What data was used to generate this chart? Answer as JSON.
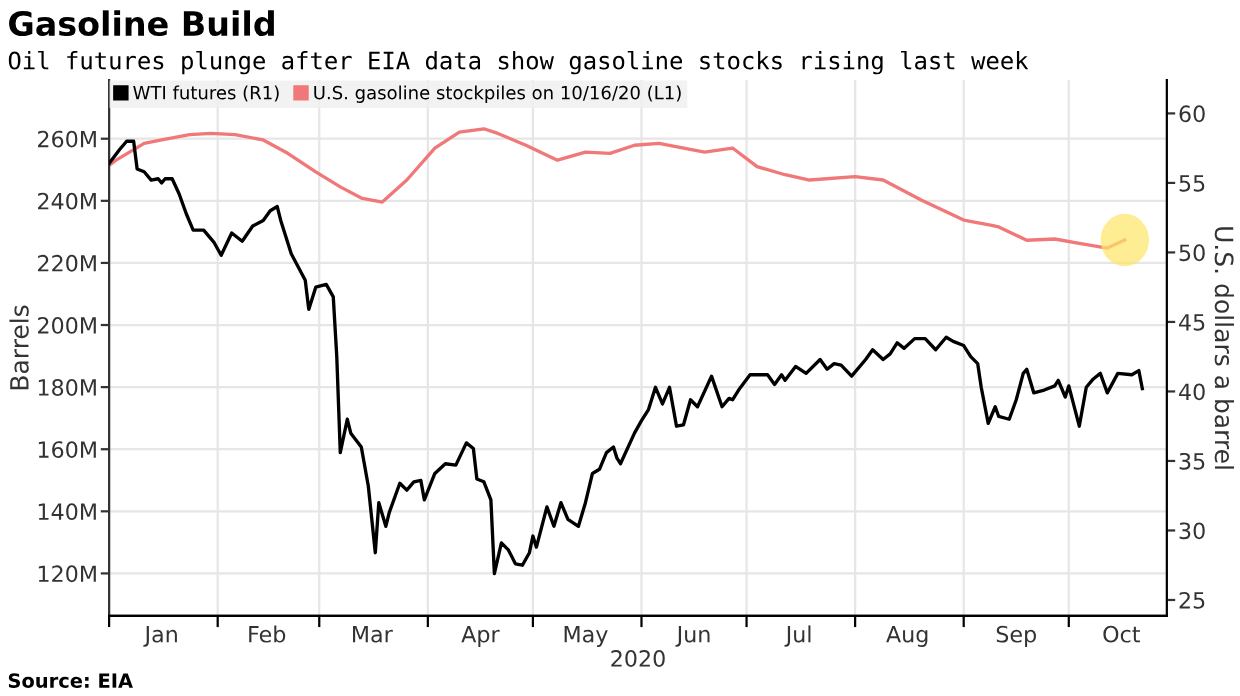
{
  "chart_data": {
    "type": "line",
    "title": "Gasoline Build",
    "subtitle": "Oil futures plunge after EIA data show gasoline stocks rising last week",
    "xlabel": "2020",
    "ylabel": "Barrels",
    "y2label": "U.S. dollars a barrel",
    "annotations": [
      "Source: EIA"
    ],
    "series": [
      {
        "name": "WTI futures (R1)",
        "color": "#000000",
        "axis": "y2",
        "x": [
          "2020-01-01",
          "2020-01-04",
          "2020-01-06",
          "2020-01-08",
          "2020-01-09",
          "2020-01-11",
          "2020-01-13",
          "2020-01-15",
          "2020-01-16",
          "2020-01-17",
          "2020-01-19",
          "2020-01-21",
          "2020-01-23",
          "2020-01-25",
          "2020-01-28",
          "2020-01-31",
          "2020-02-02",
          "2020-02-05",
          "2020-02-08",
          "2020-02-11",
          "2020-02-14",
          "2020-02-16",
          "2020-02-18",
          "2020-02-19",
          "2020-02-22",
          "2020-02-26",
          "2020-02-27",
          "2020-02-29",
          "2020-03-03",
          "2020-03-05",
          "2020-03-06",
          "2020-03-07",
          "2020-03-09",
          "2020-03-10",
          "2020-03-13",
          "2020-03-15",
          "2020-03-17",
          "2020-03-18",
          "2020-03-20",
          "2020-03-21",
          "2020-03-24",
          "2020-03-26",
          "2020-03-28",
          "2020-03-30",
          "2020-03-31",
          "2020-04-03",
          "2020-04-06",
          "2020-04-09",
          "2020-04-12",
          "2020-04-14",
          "2020-04-15",
          "2020-04-17",
          "2020-04-19",
          "2020-04-20",
          "2020-04-22",
          "2020-04-24",
          "2020-04-26",
          "2020-04-28",
          "2020-04-30",
          "2020-05-01",
          "2020-05-02",
          "2020-05-05",
          "2020-05-07",
          "2020-05-09",
          "2020-05-11",
          "2020-05-14",
          "2020-05-16",
          "2020-05-18",
          "2020-05-20",
          "2020-05-22",
          "2020-05-24",
          "2020-05-25",
          "2020-05-26",
          "2020-05-30",
          "2020-06-01",
          "2020-06-03",
          "2020-06-05",
          "2020-06-07",
          "2020-06-09",
          "2020-06-11",
          "2020-06-13",
          "2020-06-15",
          "2020-06-17",
          "2020-06-21",
          "2020-06-24",
          "2020-06-26",
          "2020-06-27",
          "2020-06-29",
          "2020-07-02",
          "2020-07-07",
          "2020-07-09",
          "2020-07-11",
          "2020-07-12",
          "2020-07-15",
          "2020-07-18",
          "2020-07-22",
          "2020-07-24",
          "2020-07-26",
          "2020-07-28",
          "2020-07-31",
          "2020-08-04",
          "2020-08-06",
          "2020-08-09",
          "2020-08-11",
          "2020-08-13",
          "2020-08-15",
          "2020-08-18",
          "2020-08-21",
          "2020-08-24",
          "2020-08-27",
          "2020-08-29",
          "2020-09-01",
          "2020-09-03",
          "2020-09-05",
          "2020-09-06",
          "2020-09-08",
          "2020-09-10",
          "2020-09-11",
          "2020-09-14",
          "2020-09-16",
          "2020-09-18",
          "2020-09-19",
          "2020-09-21",
          "2020-09-24",
          "2020-09-27",
          "2020-09-28",
          "2020-09-30",
          "2020-10-01",
          "2020-10-04",
          "2020-10-06",
          "2020-10-08",
          "2020-10-10",
          "2020-10-12",
          "2020-10-15",
          "2020-10-19",
          "2020-10-21",
          "2020-10-22"
        ],
        "values": [
          56.4,
          57.4,
          58.0,
          58.0,
          56.0,
          55.8,
          55.2,
          55.3,
          55.0,
          55.3,
          55.3,
          54.2,
          52.8,
          51.6,
          51.6,
          50.7,
          49.8,
          51.4,
          50.8,
          51.9,
          52.3,
          53.0,
          53.3,
          52.3,
          49.9,
          48.0,
          45.9,
          47.5,
          47.7,
          46.8,
          42.5,
          35.6,
          38.0,
          37.0,
          36.0,
          33.2,
          28.4,
          32.0,
          30.3,
          31.3,
          33.4,
          32.9,
          33.5,
          33.6,
          32.2,
          34.1,
          34.8,
          34.7,
          36.3,
          35.9,
          33.7,
          33.5,
          32.2,
          26.9,
          29.1,
          28.6,
          27.6,
          27.5,
          28.4,
          29.6,
          28.8,
          31.7,
          30.3,
          32.0,
          30.8,
          30.3,
          32.0,
          34.1,
          34.4,
          35.6,
          36.0,
          35.2,
          34.8,
          37.0,
          37.9,
          38.7,
          40.3,
          39.1,
          40.3,
          37.5,
          37.6,
          39.4,
          38.9,
          41.1,
          38.9,
          39.5,
          39.4,
          40.2,
          41.2,
          41.2,
          40.5,
          41.2,
          40.8,
          41.8,
          41.3,
          42.3,
          41.6,
          42.0,
          41.9,
          41.1,
          42.3,
          43.0,
          42.3,
          42.7,
          43.5,
          43.1,
          43.8,
          43.8,
          43.0,
          43.9,
          43.6,
          43.3,
          42.5,
          42.0,
          40.3,
          37.7,
          38.9,
          38.2,
          38.0,
          39.4,
          41.3,
          41.6,
          39.9,
          40.1,
          40.4,
          40.8,
          39.6,
          40.4,
          37.5,
          40.3,
          40.9,
          41.3,
          39.9,
          41.3,
          41.2,
          41.5,
          40.2
        ]
      },
      {
        "name": "U.S. gasoline stockpiles on 10/16/20 (L1)",
        "color": "#f07878",
        "axis": "y",
        "x": [
          "2020-01-01",
          "2020-01-03",
          "2020-01-11",
          "2020-01-16",
          "2020-01-24",
          "2020-01-30",
          "2020-02-06",
          "2020-02-14",
          "2020-02-21",
          "2020-02-29",
          "2020-03-07",
          "2020-03-13",
          "2020-03-19",
          "2020-03-26",
          "2020-04-03",
          "2020-04-10",
          "2020-04-17",
          "2020-04-21",
          "2020-04-29",
          "2020-05-08",
          "2020-05-16",
          "2020-05-23",
          "2020-05-30",
          "2020-06-06",
          "2020-06-19",
          "2020-06-27",
          "2020-07-04",
          "2020-07-12",
          "2020-07-19",
          "2020-08-01",
          "2020-08-09",
          "2020-08-20",
          "2020-09-01",
          "2020-09-09",
          "2020-09-11",
          "2020-09-19",
          "2020-09-27",
          "2020-10-04",
          "2020-10-12",
          "2020-10-17"
        ],
        "values": [
          251.4,
          253.1,
          258.5,
          259.6,
          261.3,
          261.7,
          261.3,
          259.6,
          255.3,
          249.3,
          244.5,
          240.9,
          239.6,
          246.7,
          257.0,
          262.1,
          263.2,
          261.7,
          257.9,
          253.1,
          255.7,
          255.3,
          257.9,
          258.5,
          255.7,
          257.0,
          251.0,
          248.4,
          246.7,
          247.8,
          246.7,
          240.2,
          233.8,
          232.1,
          231.6,
          227.3,
          227.7,
          226.3,
          224.8,
          227.4
        ]
      }
    ],
    "xlim": [
      "2020-01-01",
      "2020-10-29"
    ],
    "xticks": [
      {
        "value": "2020-01-01",
        "label": null
      },
      {
        "value": "2020-01-16",
        "label": "Jan"
      },
      {
        "value": "2020-02-01",
        "label": null
      },
      {
        "value": "2020-02-15",
        "label": "Feb"
      },
      {
        "value": "2020-03-01",
        "label": null
      },
      {
        "value": "2020-03-16",
        "label": "Mar"
      },
      {
        "value": "2020-04-01",
        "label": null
      },
      {
        "value": "2020-04-16",
        "label": "Apr"
      },
      {
        "value": "2020-05-01",
        "label": null
      },
      {
        "value": "2020-05-16",
        "label": "May"
      },
      {
        "value": "2020-06-01",
        "label": null
      },
      {
        "value": "2020-06-16",
        "label": "Jun"
      },
      {
        "value": "2020-07-01",
        "label": null
      },
      {
        "value": "2020-07-16",
        "label": "Jul"
      },
      {
        "value": "2020-08-01",
        "label": null
      },
      {
        "value": "2020-08-16",
        "label": "Aug"
      },
      {
        "value": "2020-09-01",
        "label": null
      },
      {
        "value": "2020-09-16",
        "label": "Sep"
      },
      {
        "value": "2020-10-01",
        "label": null
      },
      {
        "value": "2020-10-16",
        "label": "Oct"
      }
    ],
    "ylim": [
      106.3,
      278.9
    ],
    "yticks": [
      {
        "value": 120,
        "label": "120M"
      },
      {
        "value": 140,
        "label": "140M"
      },
      {
        "value": 160,
        "label": "160M"
      },
      {
        "value": 180,
        "label": "180M"
      },
      {
        "value": 200,
        "label": "200M"
      },
      {
        "value": 220,
        "label": "220M"
      },
      {
        "value": 240,
        "label": "240M"
      },
      {
        "value": 260,
        "label": "260M"
      }
    ],
    "y2lim": [
      23.85,
      62.4
    ],
    "y2ticks": [
      25,
      30,
      35,
      40,
      45,
      50,
      55,
      60
    ],
    "grid": true,
    "legend": "top left",
    "marker": "none",
    "line_style": "solid"
  }
}
